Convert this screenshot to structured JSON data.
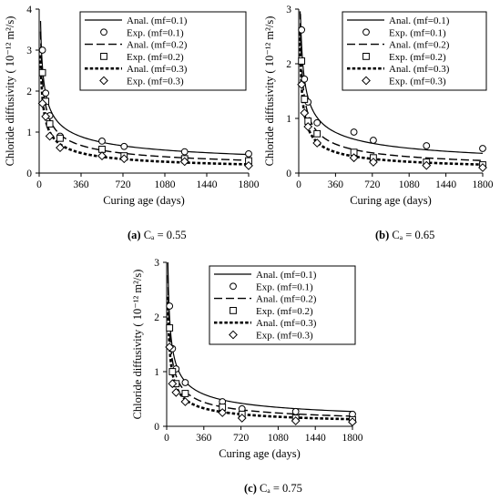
{
  "chart_data": [
    {
      "type": "line",
      "caption_prefix": "(a)",
      "caption_text": "Cₐ = 0.55",
      "xlabel": "Curing age (days)",
      "ylabel": "Chloride diffusivity ( 10⁻¹² m²/s)",
      "xlim": [
        0,
        1800
      ],
      "ylim": [
        0,
        4
      ],
      "xticks": [
        0,
        360,
        720,
        1080,
        1440,
        1800
      ],
      "yticks": [
        0,
        1,
        2,
        3,
        4
      ],
      "legend": [
        "Anal. (mf=0.1)",
        "Exp. (mf=0.1)",
        "Anal. (mf=0.2)",
        "Exp. (mf=0.2)",
        "Anal. (mf=0.3)",
        "Exp. (mf=0.3)"
      ],
      "analytical": [
        {
          "name": "Anal. (mf=0.1)",
          "style": "solid",
          "D28": 2.6,
          "m": 0.42
        },
        {
          "name": "Anal. (mf=0.2)",
          "style": "dashed",
          "D28": 2.3,
          "m": 0.48
        },
        {
          "name": "Anal. (mf=0.3)",
          "style": "dotted",
          "D28": 1.85,
          "m": 0.52
        }
      ],
      "experimental": [
        {
          "name": "Exp. (mf=0.1)",
          "marker": "circle",
          "x": [
            28,
            56,
            91,
            180,
            540,
            730,
            1250,
            1800
          ],
          "y": [
            3.0,
            1.95,
            1.4,
            0.9,
            0.78,
            0.65,
            0.52,
            0.47
          ]
        },
        {
          "name": "Exp. (mf=0.2)",
          "marker": "square",
          "x": [
            28,
            56,
            91,
            180,
            540,
            730,
            1250,
            1800
          ],
          "y": [
            2.45,
            1.75,
            1.2,
            0.85,
            0.58,
            0.42,
            0.35,
            0.3
          ]
        },
        {
          "name": "Exp. (mf=0.3)",
          "marker": "diamond",
          "x": [
            28,
            56,
            91,
            180,
            540,
            730,
            1250,
            1800
          ],
          "y": [
            1.7,
            1.38,
            0.9,
            0.62,
            0.42,
            0.35,
            0.28,
            0.18
          ]
        }
      ]
    },
    {
      "type": "line",
      "caption_prefix": "(b)",
      "caption_text": "Cₐ = 0.65",
      "xlabel": "Curing age (days)",
      "ylabel": "Chloride diffusivity ( 10⁻¹² m²/s)",
      "xlim": [
        0,
        1800
      ],
      "ylim": [
        0,
        3
      ],
      "xticks": [
        0,
        360,
        720,
        1080,
        1440,
        1800
      ],
      "yticks": [
        0,
        1,
        2,
        3
      ],
      "legend": [
        "Anal. (mf=0.1)",
        "Exp. (mf=0.1)",
        "Anal. (mf=0.2)",
        "Exp. (mf=0.2)",
        "Anal. (mf=0.3)",
        "Exp. (mf=0.3)"
      ],
      "analytical": [
        {
          "name": "Anal. (mf=0.1)",
          "style": "solid",
          "D28": 2.35,
          "m": 0.45
        },
        {
          "name": "Anal. (mf=0.2)",
          "style": "dashed",
          "D28": 2.0,
          "m": 0.52
        },
        {
          "name": "Anal. (mf=0.3)",
          "style": "dotted",
          "D28": 1.6,
          "m": 0.56
        }
      ],
      "experimental": [
        {
          "name": "Exp. (mf=0.1)",
          "marker": "circle",
          "x": [
            28,
            56,
            91,
            180,
            540,
            730,
            1250,
            1800
          ],
          "y": [
            2.62,
            1.72,
            1.3,
            0.92,
            0.75,
            0.6,
            0.5,
            0.45
          ]
        },
        {
          "name": "Exp. (mf=0.2)",
          "marker": "square",
          "x": [
            28,
            56,
            91,
            180,
            540,
            730,
            1250,
            1800
          ],
          "y": [
            2.05,
            1.35,
            0.95,
            0.72,
            0.38,
            0.28,
            0.2,
            0.15
          ]
        },
        {
          "name": "Exp. (mf=0.3)",
          "marker": "diamond",
          "x": [
            28,
            56,
            91,
            180,
            540,
            730,
            1250,
            1800
          ],
          "y": [
            1.62,
            1.1,
            0.85,
            0.55,
            0.28,
            0.2,
            0.14,
            0.1
          ]
        }
      ]
    },
    {
      "type": "line",
      "caption_prefix": "(c)",
      "caption_text": "Cₐ = 0.75",
      "xlabel": "Curing age (days)",
      "ylabel": "Chloride diffusivity ( 10⁻¹² m²/s)",
      "xlim": [
        0,
        1800
      ],
      "ylim": [
        0,
        3
      ],
      "xticks": [
        0,
        360,
        720,
        1080,
        1440,
        1800
      ],
      "yticks": [
        0,
        1,
        2,
        3
      ],
      "legend": [
        "Anal. (mf=0.1)",
        "Exp. (mf=0.1)",
        "Anal. (mf=0.2)",
        "Exp. (mf=0.2)",
        "Anal. (mf=0.3)",
        "Exp. (mf=0.3)"
      ],
      "analytical": [
        {
          "name": "Anal. (mf=0.1)",
          "style": "solid",
          "D28": 2.0,
          "m": 0.48
        },
        {
          "name": "Anal. (mf=0.2)",
          "style": "dashed",
          "D28": 1.75,
          "m": 0.54
        },
        {
          "name": "Anal. (mf=0.3)",
          "style": "dotted",
          "D28": 1.45,
          "m": 0.58
        }
      ],
      "experimental": [
        {
          "name": "Exp. (mf=0.1)",
          "marker": "circle",
          "x": [
            28,
            56,
            91,
            180,
            540,
            730,
            1250,
            1800
          ],
          "y": [
            2.2,
            1.42,
            1.05,
            0.8,
            0.45,
            0.32,
            0.27,
            0.22
          ]
        },
        {
          "name": "Exp. (mf=0.2)",
          "marker": "square",
          "x": [
            28,
            56,
            91,
            180,
            540,
            730,
            1250,
            1800
          ],
          "y": [
            1.8,
            1.0,
            0.78,
            0.6,
            0.35,
            0.22,
            0.15,
            0.12
          ]
        },
        {
          "name": "Exp. (mf=0.3)",
          "marker": "diamond",
          "x": [
            28,
            56,
            91,
            180,
            540,
            730,
            1250,
            1800
          ],
          "y": [
            1.45,
            0.78,
            0.62,
            0.45,
            0.25,
            0.15,
            0.1,
            0.08
          ]
        }
      ]
    }
  ]
}
